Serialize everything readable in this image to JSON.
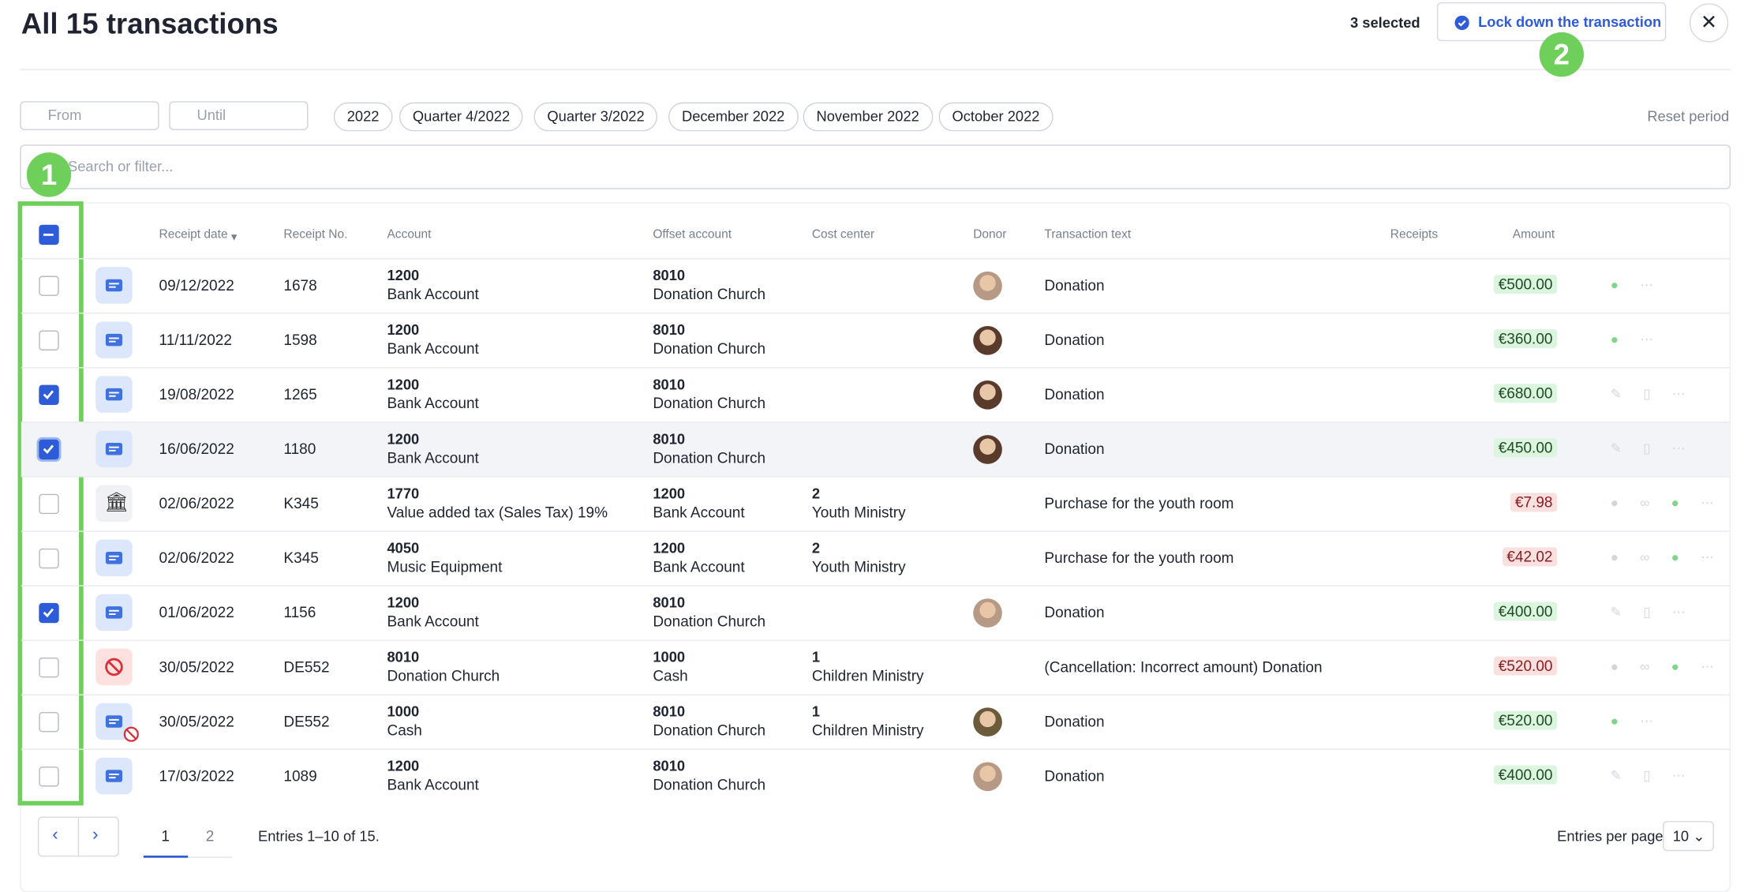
{
  "header": {
    "title": "All 15 transactions",
    "selected": "3 selected",
    "lock_button": "Lock down the transaction"
  },
  "filters": {
    "from": "From",
    "until": "Until",
    "periods": [
      "2022",
      "Quarter 4/2022",
      "Quarter 3/2022",
      "December 2022",
      "November 2022",
      "October 2022"
    ],
    "reset": "Reset period",
    "search": "Search or filter..."
  },
  "table": {
    "columns": [
      "Receipt date",
      "Receipt No.",
      "Account",
      "Offset account",
      "Cost center",
      "Donor",
      "Transaction text",
      "Receipts",
      "Amount"
    ],
    "rows": [
      {
        "date": "09/12/2022",
        "receipt_no": "1678",
        "account": [
          "1200",
          "Bank Account"
        ],
        "offset": [
          "8010",
          "Donation Church"
        ],
        "text": "Donation",
        "amount": "€500.00",
        "checked": false
      },
      {
        "date": "11/11/2022",
        "receipt_no": "1598",
        "account": [
          "1200",
          "Bank Account"
        ],
        "offset": [
          "8010",
          "Donation Church"
        ],
        "text": "Donation",
        "amount": "€360.00",
        "checked": false
      },
      {
        "date": "19/08/2022",
        "receipt_no": "1265",
        "account": [
          "1200",
          "Bank Account"
        ],
        "offset": [
          "8010",
          "Donation Church"
        ],
        "text": "Donation",
        "amount": "€680.00",
        "checked": true
      },
      {
        "date": "16/06/2022",
        "receipt_no": "1180",
        "account": [
          "1200",
          "Bank Account"
        ],
        "offset": [
          "8010",
          "Donation Church"
        ],
        "text": "Donation",
        "amount": "€450.00",
        "checked": true
      },
      {
        "date": "02/06/2022",
        "receipt_no": "K345",
        "account": [
          "1770",
          "Value added tax (Sales Tax) 19%"
        ],
        "offset": [
          "1200",
          "Bank Account"
        ],
        "cost_center": [
          "2",
          "Youth Ministry"
        ],
        "text": "Purchase for the youth room",
        "amount": "€7.98",
        "checked": false
      },
      {
        "date": "02/06/2022",
        "receipt_no": "K345",
        "account": [
          "4050",
          "Music Equipment"
        ],
        "offset": [
          "1200",
          "Bank Account"
        ],
        "cost_center": [
          "2",
          "Youth Ministry"
        ],
        "text": "Purchase for the youth room",
        "amount": "€42.02",
        "checked": false
      },
      {
        "date": "01/06/2022",
        "receipt_no": "1156",
        "account": [
          "1200",
          "Bank Account"
        ],
        "offset": [
          "8010",
          "Donation Church"
        ],
        "text": "Donation",
        "amount": "€400.00",
        "checked": true
      },
      {
        "date": "30/05/2022",
        "receipt_no": "DE552",
        "account": [
          "8010",
          "Donation Church"
        ],
        "offset": [
          "1000",
          "Cash"
        ],
        "cost_center": [
          "1",
          "Children Ministry"
        ],
        "text": "(Cancellation: Incorrect amount) Donation",
        "amount": "€520.00",
        "checked": false
      },
      {
        "date": "30/05/2022",
        "receipt_no": "DE552",
        "account": [
          "1000",
          "Cash"
        ],
        "offset": [
          "8010",
          "Donation Church"
        ],
        "cost_center": [
          "1",
          "Children Ministry"
        ],
        "text": "Donation",
        "amount": "€520.00",
        "checked": false
      },
      {
        "date": "17/03/2022",
        "receipt_no": "1089",
        "account": [
          "1200",
          "Bank Account"
        ],
        "offset": [
          "8010",
          "Donation Church"
        ],
        "text": "Donation",
        "amount": "€400.00",
        "checked": false
      }
    ]
  },
  "pagination": {
    "pages": [
      "1",
      "2"
    ],
    "entries": "Entries 1–10 of 15.",
    "per_page_label": "Entries per page",
    "per_page": "10"
  },
  "annotations": [
    "1",
    "2"
  ]
}
